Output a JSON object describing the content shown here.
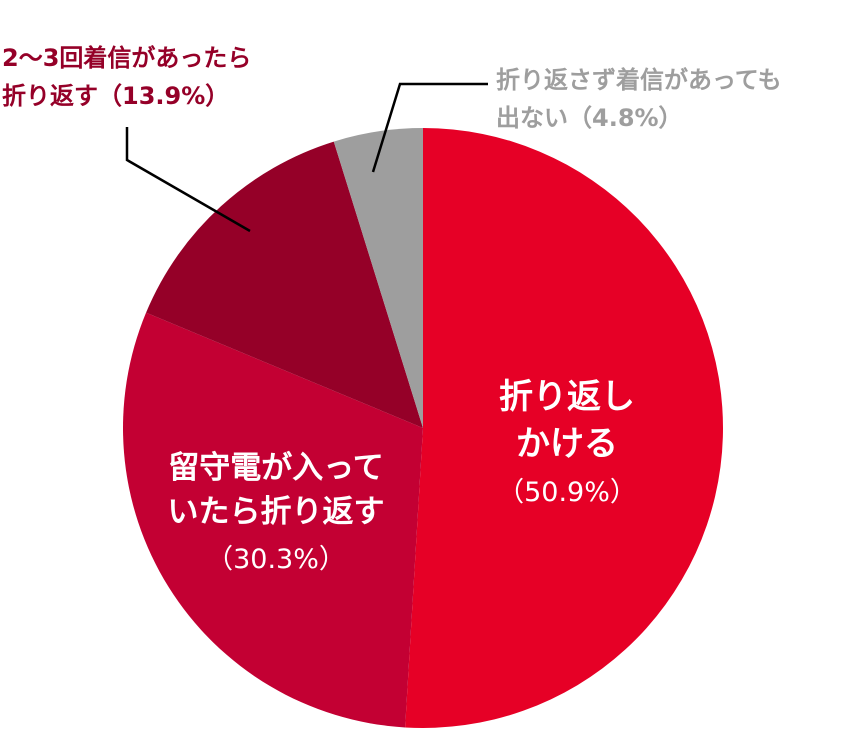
{
  "chart_data": {
    "type": "pie",
    "title": "",
    "start_angle_deg": 0,
    "direction": "clockwise",
    "slices": [
      {
        "label_lines": [
          "折り返し",
          "かける"
        ],
        "value_text": "（50.9%）",
        "value": 50.9,
        "color": "#e60026",
        "label_position": "inside"
      },
      {
        "label_lines": [
          "留守電が入って",
          "いたら折り返す"
        ],
        "value_text": "（30.3%）",
        "value": 30.3,
        "color": "#c30033",
        "label_position": "inside"
      },
      {
        "label_lines": [
          "2～3回着信があったら",
          "折り返す（13.9%）"
        ],
        "value_text": "",
        "value": 13.9,
        "color": "#950028",
        "label_position": "outside-upper-left",
        "label_color": "#950028"
      },
      {
        "label_lines": [
          "折り返さず着信があっても",
          "出ない（4.8%）"
        ],
        "value_text": "",
        "value": 4.8,
        "color": "#9e9e9e",
        "label_position": "outside-upper-right",
        "label_color": "#9e9e9e"
      }
    ]
  }
}
